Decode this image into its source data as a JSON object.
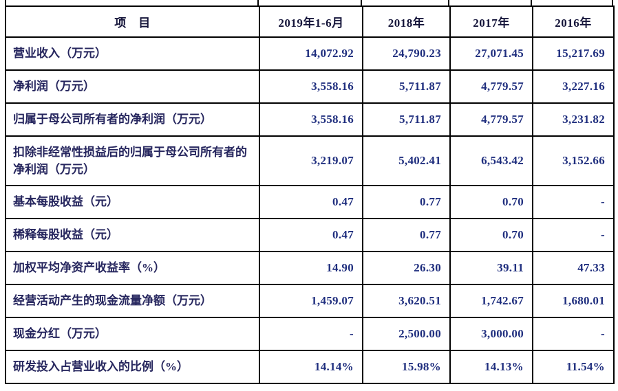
{
  "table": {
    "header": {
      "item_label": "项　目",
      "periods": [
        "2019年1-6月",
        "2018年",
        "2017年",
        "2016年"
      ]
    },
    "rows": [
      {
        "label": "营业收入（万元）",
        "values": [
          "14,072.92",
          "24,790.23",
          "27,071.45",
          "15,217.69"
        ]
      },
      {
        "label": "净利润（万元）",
        "values": [
          "3,558.16",
          "5,711.87",
          "4,779.57",
          "3,227.16"
        ]
      },
      {
        "label": "归属于母公司所有者的净利润（万元）",
        "values": [
          "3,558.16",
          "5,711.87",
          "4,779.57",
          "3,231.82"
        ]
      },
      {
        "label": "扣除非经常性损益后的归属于母公司所有者的净利润（万元）",
        "values": [
          "3,219.07",
          "5,402.41",
          "6,543.42",
          "3,152.66"
        ]
      },
      {
        "label": "基本每股收益（元）",
        "values": [
          "0.47",
          "0.77",
          "0.70",
          "-"
        ]
      },
      {
        "label": "稀释每股收益（元）",
        "values": [
          "0.47",
          "0.77",
          "0.70",
          "-"
        ]
      },
      {
        "label": "加权平均净资产收益率（%）",
        "values": [
          "14.90",
          "26.30",
          "39.11",
          "47.33"
        ]
      },
      {
        "label": "经营活动产生的现金流量净额（万元）",
        "values": [
          "1,459.07",
          "3,620.51",
          "1,742.67",
          "1,680.01"
        ]
      },
      {
        "label": "现金分红（万元）",
        "values": [
          "-",
          "2,500.00",
          "3,000.00",
          "-"
        ]
      },
      {
        "label": "研发投入占营业收入的比例（%）",
        "values": [
          "14.14%",
          "15.98%",
          "14.13%",
          "11.54%"
        ]
      }
    ],
    "colors": {
      "border": "#000000",
      "header_text": "#15153a",
      "label_text": "#26265e",
      "number_text": "#1f2e7e",
      "background": "#ffffff"
    }
  }
}
